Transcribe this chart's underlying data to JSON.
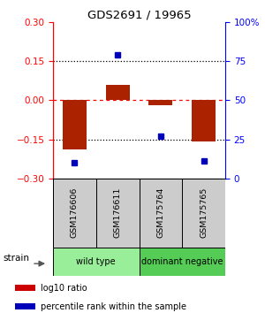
{
  "title": "GDS2691 / 19965",
  "samples": [
    "GSM176606",
    "GSM176611",
    "GSM175764",
    "GSM175765"
  ],
  "log10_ratio": [
    -0.19,
    0.06,
    -0.02,
    -0.16
  ],
  "percentile_rank": [
    10,
    79,
    27,
    11
  ],
  "bar_color": "#aa2200",
  "dot_color": "#0000bb",
  "ylim_left": [
    -0.3,
    0.3
  ],
  "ylim_right": [
    0,
    100
  ],
  "yticks_left": [
    -0.3,
    -0.15,
    0,
    0.15,
    0.3
  ],
  "yticks_right": [
    0,
    25,
    50,
    75,
    100
  ],
  "group_data": [
    {
      "start": 0,
      "end": 1,
      "label": "wild type",
      "color": "#99ee99"
    },
    {
      "start": 2,
      "end": 3,
      "label": "dominant negative",
      "color": "#55cc55"
    }
  ],
  "legend_items": [
    {
      "color": "#cc0000",
      "label": "log10 ratio"
    },
    {
      "color": "#0000bb",
      "label": "percentile rank within the sample"
    }
  ],
  "sample_label_bg": "#cccccc",
  "plot_bg": "#ffffff"
}
